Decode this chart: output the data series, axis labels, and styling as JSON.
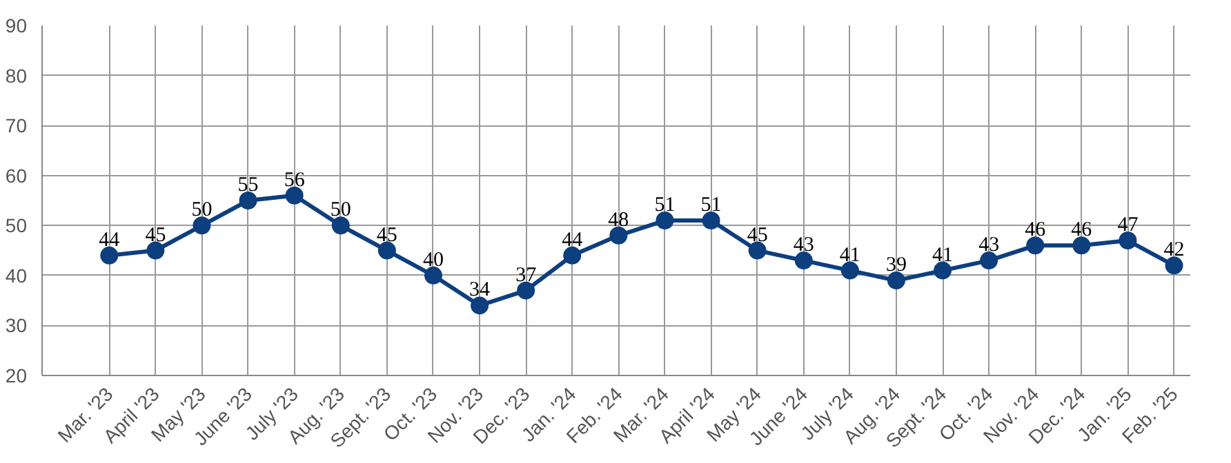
{
  "chart_data": {
    "type": "line",
    "categories": [
      "Mar. '23",
      "April '23",
      "May '23",
      "June '23",
      "July '23",
      "Aug. '23",
      "Sept. '23",
      "Oct. '23",
      "Nov. '23",
      "Dec. '23",
      "Jan. '24",
      "Feb. '24",
      "Mar. '24",
      "April '24",
      "May '24",
      "June '24",
      "July '24",
      "Aug. '24",
      "Sept. '24",
      "Oct. '24",
      "Nov. '24",
      "Dec. '24",
      "Jan. '25",
      "Feb. '25"
    ],
    "series": [
      {
        "color": "#0d3f7f",
        "values": [
          44,
          45,
          50,
          55,
          56,
          50,
          45,
          40,
          34,
          37,
          44,
          48,
          51,
          51,
          45,
          43,
          41,
          39,
          41,
          43,
          46,
          46,
          47,
          42
        ]
      }
    ],
    "ylim": [
      20,
      90
    ],
    "yticks": [
      20,
      30,
      40,
      50,
      60,
      70,
      80,
      90
    ],
    "grid": true,
    "marker": "circle",
    "line_style": "solid",
    "data_labels": true
  }
}
